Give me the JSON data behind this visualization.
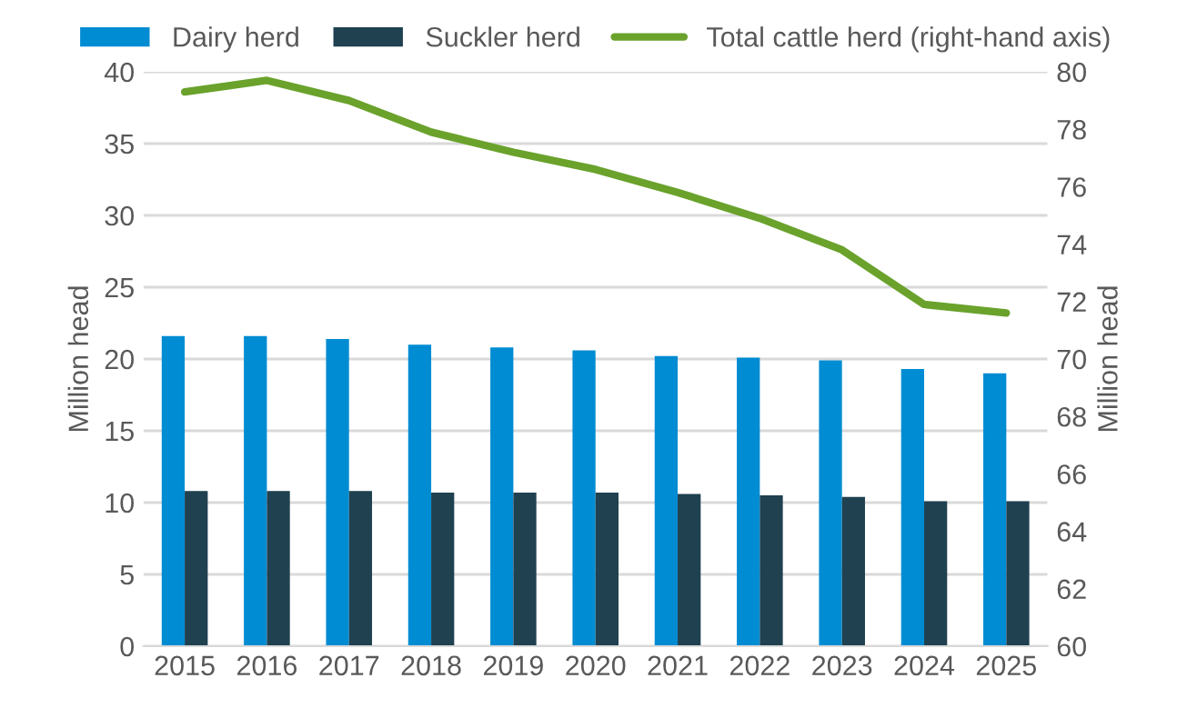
{
  "chart_data": {
    "type": "bar",
    "categories": [
      "2015",
      "2016",
      "2017",
      "2018",
      "2019",
      "2020",
      "2021",
      "2022",
      "2023",
      "2024",
      "2025"
    ],
    "ylabel": "Million head",
    "y2label": "Million head",
    "ylim": [
      0,
      40
    ],
    "yticks": [
      0,
      5,
      10,
      15,
      20,
      25,
      30,
      35,
      40
    ],
    "y2lim": [
      60,
      80
    ],
    "y2ticks": [
      60,
      62,
      64,
      66,
      68,
      70,
      72,
      74,
      76,
      78,
      80
    ],
    "grid": "y",
    "legend": "top",
    "series": [
      {
        "name": "Dairy herd",
        "color": "#008cd2",
        "values": [
          21.6,
          21.6,
          21.4,
          21.0,
          20.8,
          20.6,
          20.2,
          20.1,
          19.9,
          19.3,
          19.0
        ]
      },
      {
        "name": "Suckler herd",
        "color": "#1f4150",
        "values": [
          10.8,
          10.8,
          10.8,
          10.7,
          10.7,
          10.7,
          10.6,
          10.5,
          10.4,
          10.1,
          10.1
        ]
      },
      {
        "name": "Total cattle herd (right-hand axis)",
        "type": "line",
        "axis": "y2",
        "color": "#6aa22c",
        "values": [
          79.3,
          79.7,
          79.0,
          77.9,
          77.2,
          76.6,
          75.8,
          74.9,
          73.8,
          71.9,
          71.6
        ]
      }
    ]
  }
}
